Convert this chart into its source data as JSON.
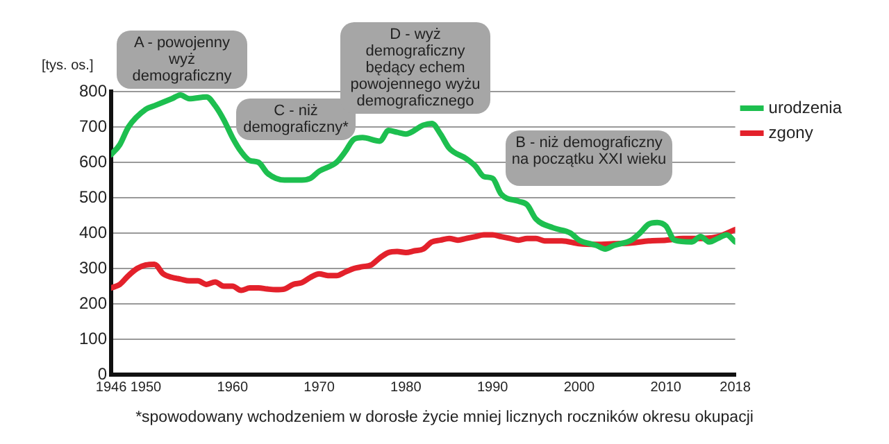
{
  "chart_data": {
    "type": "line",
    "ylabel": "[tys. os.]",
    "xlim": [
      1946,
      2018
    ],
    "xticks": [
      1946,
      1950,
      1960,
      1970,
      1980,
      1990,
      2000,
      2010,
      2018
    ],
    "ylim": [
      0,
      800
    ],
    "yticks": [
      0,
      100,
      200,
      300,
      400,
      500,
      600,
      700,
      800
    ],
    "grid": "y",
    "legend": "top right",
    "marker": "none",
    "line_style": "solid",
    "series": [
      {
        "name": "urodzenia",
        "color": "#1dbf4f",
        "x": [
          1946,
          1947,
          1948,
          1950,
          1951,
          1953,
          1954,
          1955,
          1957,
          1958,
          1959,
          1960,
          1961,
          1962,
          1963,
          1964,
          1965,
          1966,
          1968,
          1969,
          1970,
          1972,
          1973,
          1974,
          1975,
          1977,
          1978,
          1979,
          1980,
          1982,
          1983,
          1984,
          1985,
          1987,
          1988,
          1989,
          1990,
          1991,
          1993,
          1994,
          1995,
          1997,
          1999,
          2000,
          2002,
          2003,
          2004,
          2006,
          2007,
          2008,
          2009,
          2010,
          2011,
          2013,
          2014,
          2015,
          2016,
          2017,
          2018
        ],
        "values": [
          622,
          650,
          700,
          750,
          760,
          780,
          790,
          780,
          785,
          760,
          720,
          670,
          630,
          605,
          600,
          570,
          555,
          550,
          550,
          555,
          575,
          600,
          630,
          665,
          670,
          660,
          690,
          685,
          680,
          705,
          710,
          680,
          640,
          610,
          590,
          560,
          555,
          510,
          490,
          480,
          440,
          415,
          400,
          380,
          365,
          355,
          365,
          380,
          400,
          425,
          430,
          420,
          380,
          375,
          390,
          375,
          385,
          395,
          375
        ]
      },
      {
        "name": "zgony",
        "color": "#e3212b",
        "x": [
          1946,
          1947,
          1948,
          1949,
          1950,
          1951,
          1952,
          1953,
          1954,
          1955,
          1956,
          1957,
          1958,
          1959,
          1960,
          1961,
          1962,
          1963,
          1964,
          1965,
          1966,
          1967,
          1968,
          1969,
          1970,
          1971,
          1972,
          1973,
          1974,
          1975,
          1976,
          1977,
          1978,
          1979,
          1980,
          1981,
          1982,
          1983,
          1984,
          1985,
          1986,
          1987,
          1988,
          1989,
          1990,
          1991,
          1992,
          1993,
          1994,
          1995,
          1996,
          1998,
          2000,
          2002,
          2004,
          2006,
          2008,
          2010,
          2012,
          2014,
          2016,
          2018
        ],
        "values": [
          245,
          255,
          280,
          300,
          310,
          312,
          285,
          275,
          270,
          265,
          265,
          255,
          262,
          250,
          250,
          238,
          245,
          245,
          242,
          240,
          242,
          255,
          260,
          275,
          285,
          280,
          280,
          290,
          300,
          305,
          310,
          330,
          345,
          348,
          345,
          350,
          355,
          375,
          380,
          385,
          380,
          385,
          390,
          395,
          395,
          390,
          385,
          380,
          385,
          385,
          378,
          378,
          370,
          368,
          370,
          372,
          378,
          380,
          385,
          385,
          390,
          410
        ]
      }
    ],
    "annotations": [
      "A - powojenny wyż demograficzny",
      "C - niż demograficzny*",
      "D - wyż demograficzny będący echem powojennego wyżu demograficznego",
      "B - niż demograficzny na początku XXI wieku",
      "*spowodowany wchodzeniem w dorosłe życie mniej licznych roczników okresu okupacji"
    ]
  }
}
